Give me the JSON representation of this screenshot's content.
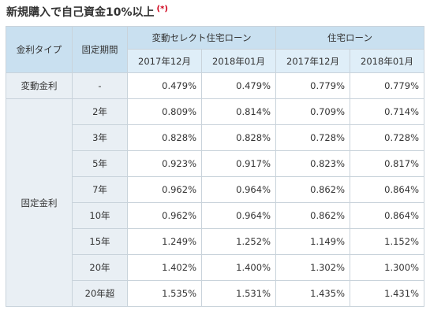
{
  "title": {
    "text": "新規購入で自己資金10%以上",
    "note": "(*)"
  },
  "table": {
    "header": {
      "rate_type": "金利タイプ",
      "fixed_period": "固定期間",
      "group1": "変動セレクト住宅ローン",
      "group2": "住宅ローン",
      "months": [
        "2017年12月",
        "2018年01月",
        "2017年12月",
        "2018年01月"
      ]
    },
    "sections": [
      {
        "type": "変動金利",
        "rows": [
          {
            "period": "-",
            "values": [
              "0.479%",
              "0.479%",
              "0.779%",
              "0.779%"
            ]
          }
        ]
      },
      {
        "type": "固定金利",
        "rows": [
          {
            "period": "2年",
            "values": [
              "0.809%",
              "0.814%",
              "0.709%",
              "0.714%"
            ]
          },
          {
            "period": "3年",
            "values": [
              "0.828%",
              "0.828%",
              "0.728%",
              "0.728%"
            ]
          },
          {
            "period": "5年",
            "values": [
              "0.923%",
              "0.917%",
              "0.823%",
              "0.817%"
            ]
          },
          {
            "period": "7年",
            "values": [
              "0.962%",
              "0.964%",
              "0.862%",
              "0.864%"
            ]
          },
          {
            "period": "10年",
            "values": [
              "0.962%",
              "0.964%",
              "0.862%",
              "0.864%"
            ]
          },
          {
            "period": "15年",
            "values": [
              "1.249%",
              "1.252%",
              "1.149%",
              "1.152%"
            ]
          },
          {
            "period": "20年",
            "values": [
              "1.402%",
              "1.400%",
              "1.302%",
              "1.300%"
            ]
          },
          {
            "period": "20年超",
            "values": [
              "1.535%",
              "1.531%",
              "1.435%",
              "1.431%"
            ]
          }
        ]
      }
    ]
  },
  "colors": {
    "header_bg": "#c9e0f0",
    "subheader_bg": "#dfeef8",
    "side_bg": "#e9eff4",
    "border": "#c9d3db",
    "note": "#d0021b"
  }
}
